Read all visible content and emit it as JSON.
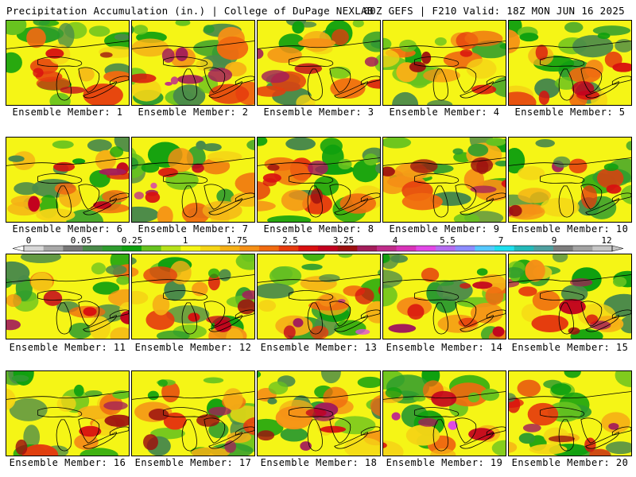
{
  "header": {
    "title": "Precipitation Accumulation (in.) | College of DuPage NEXLAB",
    "run_info": "00Z GEFS | F210 Valid: 18Z MON JUN 16 2025"
  },
  "legend": {
    "tick_labels": [
      "0",
      "0.05",
      "0.25",
      "1",
      "1.75",
      "2.5",
      "3.25",
      "4",
      "5.5",
      "7",
      "9",
      "12"
    ],
    "colors": [
      "#d8d8d8",
      "#a8a8a8",
      "#787878",
      "#4a8a4a",
      "#2e9c2e",
      "#0fa00f",
      "#66c21f",
      "#b6e11a",
      "#f5f516",
      "#f5d516",
      "#f5b016",
      "#f59016",
      "#f06a10",
      "#e53b0e",
      "#d81010",
      "#c2001e",
      "#9c1010",
      "#a31d5a",
      "#c02c8a",
      "#d833b8",
      "#e148e6",
      "#b46cf0",
      "#8c8cff",
      "#55c8ff",
      "#1edfee",
      "#23b9b9",
      "#4f9f9f",
      "#7d7d7d",
      "#a2a2a2",
      "#c6c6c6"
    ]
  },
  "members": [
    {
      "label": "Ensemble Member: 1"
    },
    {
      "label": "Ensemble Member: 2"
    },
    {
      "label": "Ensemble Member: 3"
    },
    {
      "label": "Ensemble Member: 4"
    },
    {
      "label": "Ensemble Member: 5"
    },
    {
      "label": "Ensemble Member: 6"
    },
    {
      "label": "Ensemble Member: 7"
    },
    {
      "label": "Ensemble Member: 8"
    },
    {
      "label": "Ensemble Member: 9"
    },
    {
      "label": "Ensemble Member: 10"
    },
    {
      "label": "Ensemble Member: 11"
    },
    {
      "label": "Ensemble Member: 12"
    },
    {
      "label": "Ensemble Member: 13"
    },
    {
      "label": "Ensemble Member: 14"
    },
    {
      "label": "Ensemble Member: 15"
    },
    {
      "label": "Ensemble Member: 16"
    },
    {
      "label": "Ensemble Member: 17"
    },
    {
      "label": "Ensemble Member: 18"
    },
    {
      "label": "Ensemble Member: 19"
    },
    {
      "label": "Ensemble Member: 20"
    }
  ]
}
